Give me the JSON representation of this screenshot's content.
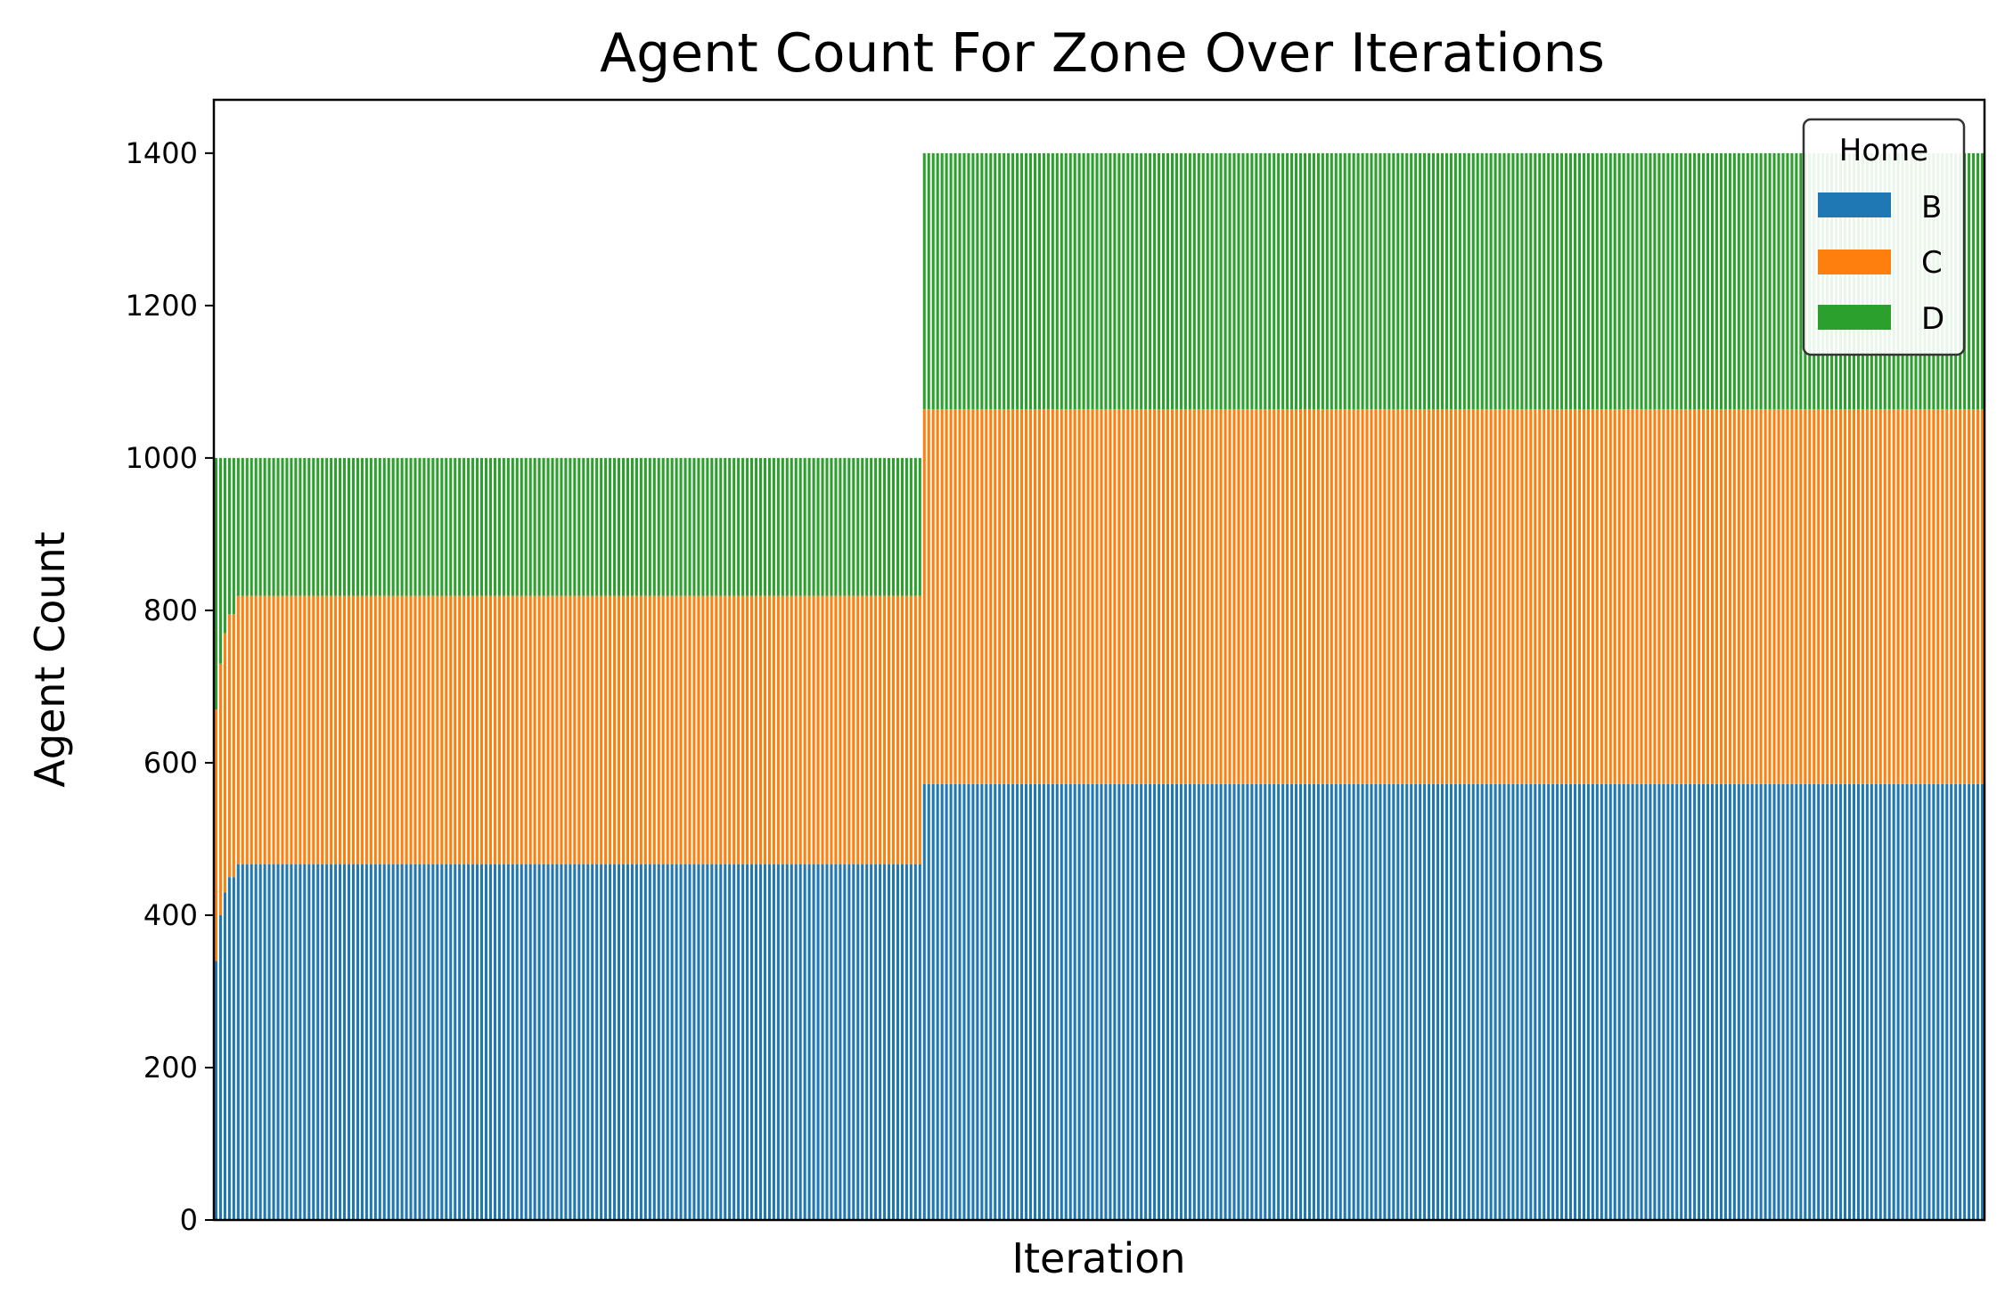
{
  "chart_data": {
    "type": "bar",
    "stacked": true,
    "title": "Agent Count For Zone Over Iterations",
    "xlabel": "Iteration",
    "ylabel": "Agent Count",
    "ylim": [
      0,
      1470
    ],
    "yticks": [
      "0",
      "200",
      "400",
      "600",
      "800",
      "1000",
      "1200",
      "1400"
    ],
    "x_ticks_shown": false,
    "iterations": 400,
    "segments": [
      {
        "from_iteration": 1,
        "to_iteration": 160,
        "total": 1000
      },
      {
        "from_iteration": 161,
        "to_iteration": 400,
        "total": 1400
      }
    ],
    "series": [
      {
        "name": "B",
        "color": "#1f77b4",
        "values_summary": [
          {
            "from_iteration": 1,
            "to_iteration": 1,
            "value": 340
          },
          {
            "from_iteration": 2,
            "to_iteration": 2,
            "value": 400
          },
          {
            "from_iteration": 3,
            "to_iteration": 3,
            "value": 430
          },
          {
            "from_iteration": 4,
            "to_iteration": 5,
            "value": 450
          },
          {
            "from_iteration": 6,
            "to_iteration": 160,
            "value": 467
          },
          {
            "from_iteration": 161,
            "to_iteration": 400,
            "value": 572
          }
        ]
      },
      {
        "name": "C",
        "color": "#ff7f0e",
        "values_summary": [
          {
            "from_iteration": 1,
            "to_iteration": 1,
            "value": 330
          },
          {
            "from_iteration": 2,
            "to_iteration": 2,
            "value": 330
          },
          {
            "from_iteration": 3,
            "to_iteration": 3,
            "value": 340
          },
          {
            "from_iteration": 4,
            "to_iteration": 5,
            "value": 345
          },
          {
            "from_iteration": 6,
            "to_iteration": 160,
            "value": 352
          },
          {
            "from_iteration": 161,
            "to_iteration": 400,
            "value": 492
          }
        ]
      },
      {
        "name": "D",
        "color": "#2ca02c",
        "values_summary": [
          {
            "from_iteration": 1,
            "to_iteration": 1,
            "value": 330
          },
          {
            "from_iteration": 2,
            "to_iteration": 2,
            "value": 270
          },
          {
            "from_iteration": 3,
            "to_iteration": 3,
            "value": 230
          },
          {
            "from_iteration": 4,
            "to_iteration": 5,
            "value": 205
          },
          {
            "from_iteration": 6,
            "to_iteration": 160,
            "value": 181
          },
          {
            "from_iteration": 161,
            "to_iteration": 400,
            "value": 336
          }
        ]
      }
    ],
    "legend": {
      "title": "Home",
      "placement": "top-right",
      "entries": [
        "B",
        "C",
        "D"
      ]
    },
    "grid": false
  }
}
